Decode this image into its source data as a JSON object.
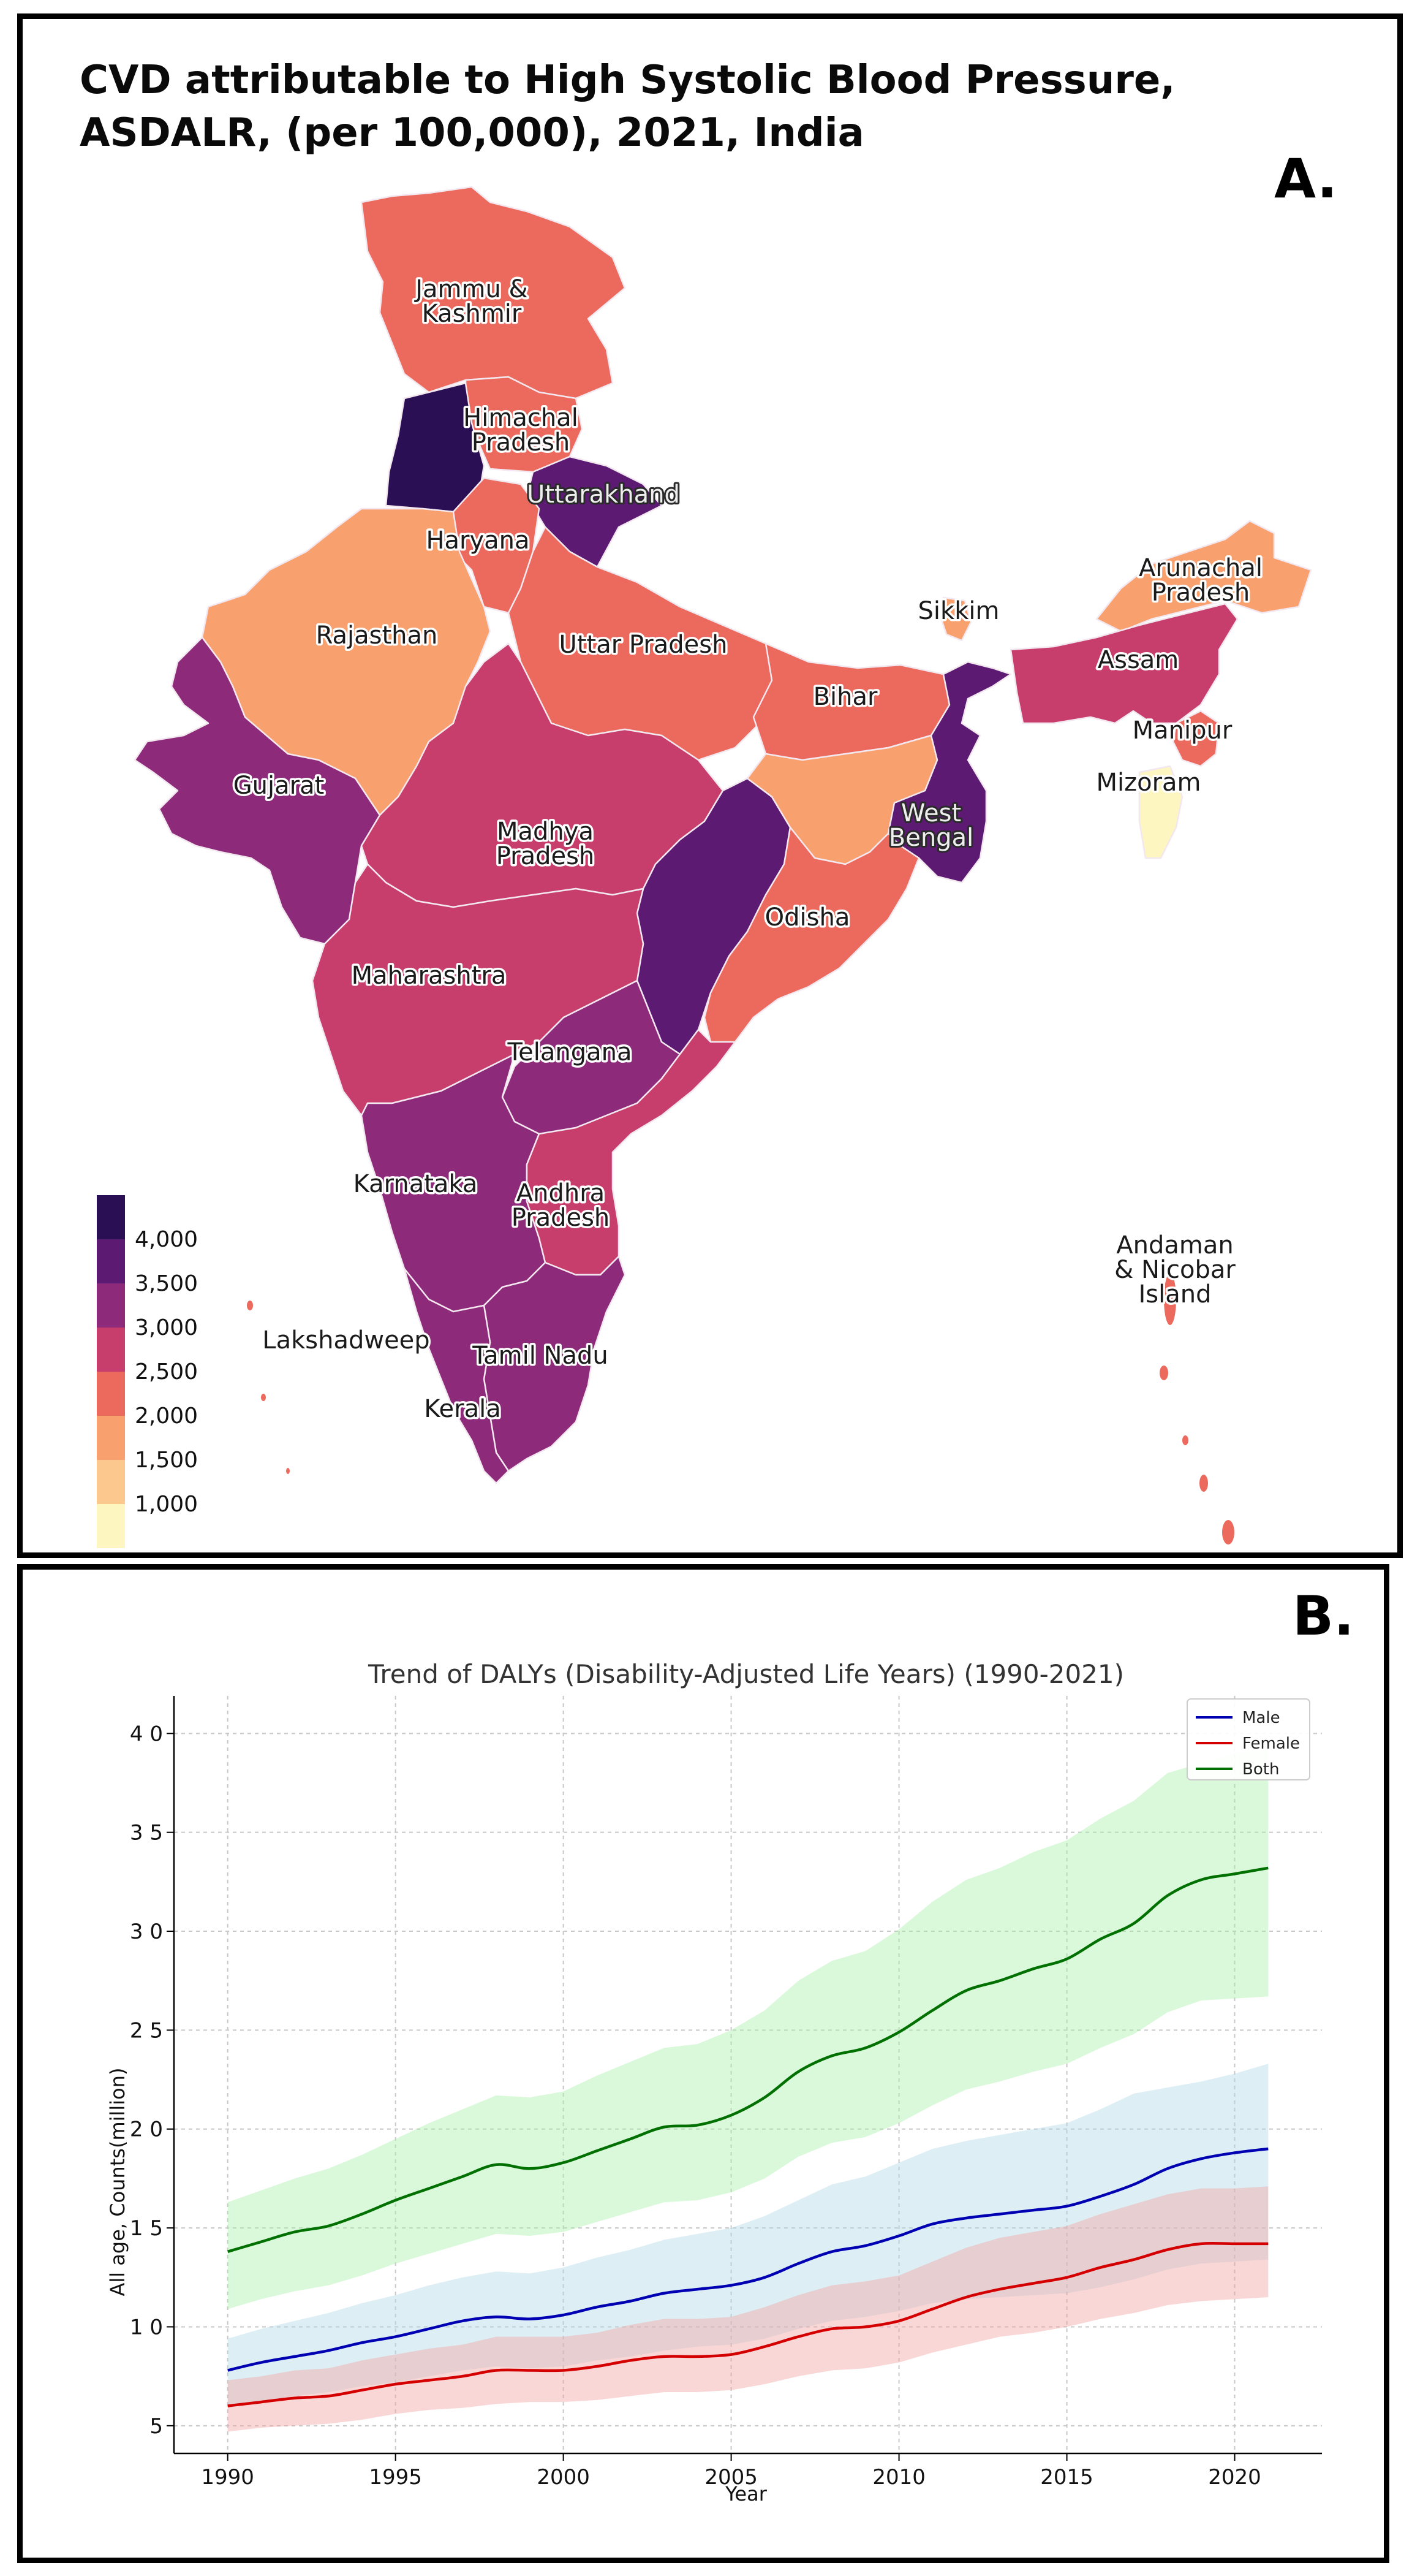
{
  "panel_a": {
    "title": "CVD attributable to High Systolic Blood Pressure, ASDALR, (per 100,000), 2021, India",
    "letter": "A.",
    "legend": {
      "ticks": [
        "4,000",
        "3,500",
        "3,000",
        "2,500",
        "2,000",
        "1,500",
        "1,000"
      ],
      "colors": [
        "#2b0f54",
        "#5c1a73",
        "#8e2a7a",
        "#c73d6c",
        "#ec6a5d",
        "#f9a06f",
        "#fdc88d",
        "#fdf6c0"
      ]
    },
    "states": [
      {
        "name": "Jammu & Kashmir",
        "lines": [
          "Jammu &",
          "Kashmir"
        ],
        "color": "#ec6a5d"
      },
      {
        "name": "Himachal Pradesh",
        "lines": [
          "Himachal",
          "Pradesh"
        ],
        "color": "#ec6a5d"
      },
      {
        "name": "Punjab",
        "lines": [],
        "color": "#2b0f54"
      },
      {
        "name": "Uttarakhand",
        "lines": [
          "Uttarakhand"
        ],
        "color": "#5c1a73"
      },
      {
        "name": "Haryana",
        "lines": [
          "Haryana"
        ],
        "color": "#ec6a5d"
      },
      {
        "name": "Rajasthan",
        "lines": [
          "Rajasthan"
        ],
        "color": "#f9a06f"
      },
      {
        "name": "Uttar Pradesh",
        "lines": [
          "Uttar Pradesh"
        ],
        "color": "#ec6a5d"
      },
      {
        "name": "Bihar",
        "lines": [
          "Bihar"
        ],
        "color": "#ec6a5d"
      },
      {
        "name": "Sikkim",
        "lines": [
          "Sikkim"
        ],
        "color": "#f9a06f"
      },
      {
        "name": "Arunachal Pradesh",
        "lines": [
          "Arunachal",
          "Pradesh"
        ],
        "color": "#f9a06f"
      },
      {
        "name": "Assam",
        "lines": [
          "Assam"
        ],
        "color": "#c73d6c"
      },
      {
        "name": "Manipur",
        "lines": [
          "Manipur"
        ],
        "color": "#ec6a5d"
      },
      {
        "name": "Mizoram",
        "lines": [
          "Mizoram"
        ],
        "color": "#fdf6c0"
      },
      {
        "name": "Gujarat",
        "lines": [
          "Gujarat"
        ],
        "color": "#8e2a7a"
      },
      {
        "name": "Madhya Pradesh",
        "lines": [
          "Madhya",
          "Pradesh"
        ],
        "color": "#c73d6c"
      },
      {
        "name": "Chhattisgarh",
        "lines": [],
        "color": "#5c1a73"
      },
      {
        "name": "Jharkhand",
        "lines": [],
        "color": "#f9a06f"
      },
      {
        "name": "West Bengal",
        "lines": [
          "West",
          "Bengal"
        ],
        "color": "#5c1a73"
      },
      {
        "name": "Odisha",
        "lines": [
          "Odisha"
        ],
        "color": "#ec6a5d"
      },
      {
        "name": "Maharashtra",
        "lines": [
          "Maharashtra"
        ],
        "color": "#c73d6c"
      },
      {
        "name": "Telangana",
        "lines": [
          "Telangana"
        ],
        "color": "#8e2a7a"
      },
      {
        "name": "Karnataka",
        "lines": [
          "Karnataka"
        ],
        "color": "#8e2a7a"
      },
      {
        "name": "Andhra Pradesh",
        "lines": [
          "Andhra",
          "Pradesh"
        ],
        "color": "#c73d6c"
      },
      {
        "name": "Tamil Nadu",
        "lines": [
          "Tamil Nadu"
        ],
        "color": "#8e2a7a"
      },
      {
        "name": "Kerala",
        "lines": [
          "Kerala"
        ],
        "color": "#8e2a7a"
      },
      {
        "name": "Lakshadweep",
        "lines": [
          "Lakshadweep"
        ],
        "color": "#ec6a5d"
      },
      {
        "name": "Andaman & Nicobar Island",
        "lines": [
          "Andaman",
          "& Nicobar",
          "Island"
        ],
        "color": "#ec6a5d"
      }
    ]
  },
  "panel_b": {
    "letter": "B."
  },
  "chart_data": {
    "type": "line",
    "title": "Trend of DALYs (Disability-Adjusted Life Years) (1990-2021)",
    "xlabel": "Year",
    "ylabel": "All age, Counts(million)",
    "xlim": [
      1988.4,
      2022.6
    ],
    "ylim": [
      3.6,
      41.9
    ],
    "xticks": [
      1990,
      1995,
      2000,
      2005,
      2010,
      2015,
      2020
    ],
    "xtick_labels": [
      "1990",
      "1995",
      "2000",
      "2005",
      "2010",
      "2015",
      "2020"
    ],
    "yticks": [
      5,
      10,
      15,
      20,
      25,
      30,
      35,
      40
    ],
    "ytick_labels": [
      "5",
      "1 0",
      "1 5",
      "2 0",
      "2 5",
      "3 0",
      "3 5",
      "4 0"
    ],
    "grid": true,
    "legend_position": "top-right",
    "x": [
      1990,
      1991,
      1992,
      1993,
      1994,
      1995,
      1996,
      1997,
      1998,
      1999,
      2000,
      2001,
      2002,
      2003,
      2004,
      2005,
      2006,
      2007,
      2008,
      2009,
      2010,
      2011,
      2012,
      2013,
      2014,
      2015,
      2016,
      2017,
      2018,
      2019,
      2020,
      2021
    ],
    "series": [
      {
        "name": "Male",
        "color": "#0000b3",
        "band_color": "#add8e6",
        "values": [
          7.8,
          8.2,
          8.5,
          8.8,
          9.2,
          9.5,
          9.9,
          10.3,
          10.5,
          10.4,
          10.6,
          11.0,
          11.3,
          11.7,
          11.9,
          12.1,
          12.5,
          13.2,
          13.8,
          14.1,
          14.6,
          15.2,
          15.5,
          15.7,
          15.9,
          16.1,
          16.6,
          17.2,
          18.0,
          18.5,
          18.8,
          19.0
        ],
        "lower": [
          5.9,
          6.2,
          6.5,
          6.7,
          7.0,
          7.2,
          7.5,
          7.8,
          8.0,
          7.9,
          8.0,
          8.3,
          8.5,
          8.8,
          9.0,
          9.1,
          9.4,
          9.9,
          10.3,
          10.5,
          10.8,
          11.2,
          11.4,
          11.5,
          11.6,
          11.7,
          12.0,
          12.4,
          12.9,
          13.2,
          13.3,
          13.4
        ],
        "upper": [
          9.4,
          9.9,
          10.3,
          10.7,
          11.2,
          11.6,
          12.1,
          12.5,
          12.8,
          12.7,
          13.0,
          13.5,
          13.9,
          14.4,
          14.7,
          15.0,
          15.6,
          16.4,
          17.2,
          17.6,
          18.3,
          19.0,
          19.4,
          19.7,
          20.0,
          20.3,
          21.0,
          21.8,
          22.1,
          22.4,
          22.8,
          23.3
        ]
      },
      {
        "name": "Female",
        "color": "#d40000",
        "band_color": "#f4a0a0",
        "values": [
          6.0,
          6.2,
          6.4,
          6.5,
          6.8,
          7.1,
          7.3,
          7.5,
          7.8,
          7.8,
          7.8,
          8.0,
          8.3,
          8.5,
          8.5,
          8.6,
          9.0,
          9.5,
          9.9,
          10.0,
          10.3,
          10.9,
          11.5,
          11.9,
          12.2,
          12.5,
          13.0,
          13.4,
          13.9,
          14.2,
          14.2,
          14.2
        ],
        "lower": [
          4.7,
          4.9,
          5.0,
          5.1,
          5.3,
          5.6,
          5.8,
          5.9,
          6.1,
          6.2,
          6.2,
          6.3,
          6.5,
          6.7,
          6.7,
          6.8,
          7.1,
          7.5,
          7.8,
          7.9,
          8.2,
          8.7,
          9.1,
          9.5,
          9.7,
          10.0,
          10.4,
          10.7,
          11.1,
          11.3,
          11.4,
          11.5
        ],
        "upper": [
          7.3,
          7.5,
          7.8,
          7.9,
          8.3,
          8.6,
          8.9,
          9.1,
          9.5,
          9.5,
          9.5,
          9.7,
          10.1,
          10.4,
          10.4,
          10.5,
          11.0,
          11.6,
          12.1,
          12.3,
          12.6,
          13.3,
          14.0,
          14.5,
          14.8,
          15.1,
          15.7,
          16.2,
          16.7,
          17.0,
          17.0,
          17.1
        ]
      },
      {
        "name": "Both",
        "color": "#007000",
        "band_color": "#a8f0a8",
        "values": [
          13.8,
          14.3,
          14.8,
          15.1,
          15.7,
          16.4,
          17.0,
          17.6,
          18.2,
          18.0,
          18.3,
          18.9,
          19.5,
          20.1,
          20.2,
          20.7,
          21.6,
          22.9,
          23.7,
          24.1,
          24.9,
          26.0,
          27.0,
          27.5,
          28.1,
          28.6,
          29.6,
          30.4,
          31.8,
          32.6,
          32.9,
          33.2
        ],
        "lower": [
          10.9,
          11.4,
          11.8,
          12.1,
          12.6,
          13.2,
          13.7,
          14.2,
          14.7,
          14.6,
          14.8,
          15.3,
          15.8,
          16.3,
          16.4,
          16.8,
          17.5,
          18.6,
          19.3,
          19.6,
          20.3,
          21.2,
          22.0,
          22.4,
          22.9,
          23.3,
          24.1,
          24.8,
          25.9,
          26.5,
          26.6,
          26.7
        ],
        "upper": [
          16.3,
          16.9,
          17.5,
          18.0,
          18.7,
          19.5,
          20.3,
          21.0,
          21.7,
          21.6,
          21.9,
          22.7,
          23.4,
          24.1,
          24.3,
          25.0,
          26.0,
          27.5,
          28.5,
          29.0,
          30.1,
          31.5,
          32.6,
          33.2,
          34.0,
          34.6,
          35.7,
          36.6,
          38.0,
          38.5,
          39.0,
          39.2
        ]
      }
    ]
  }
}
